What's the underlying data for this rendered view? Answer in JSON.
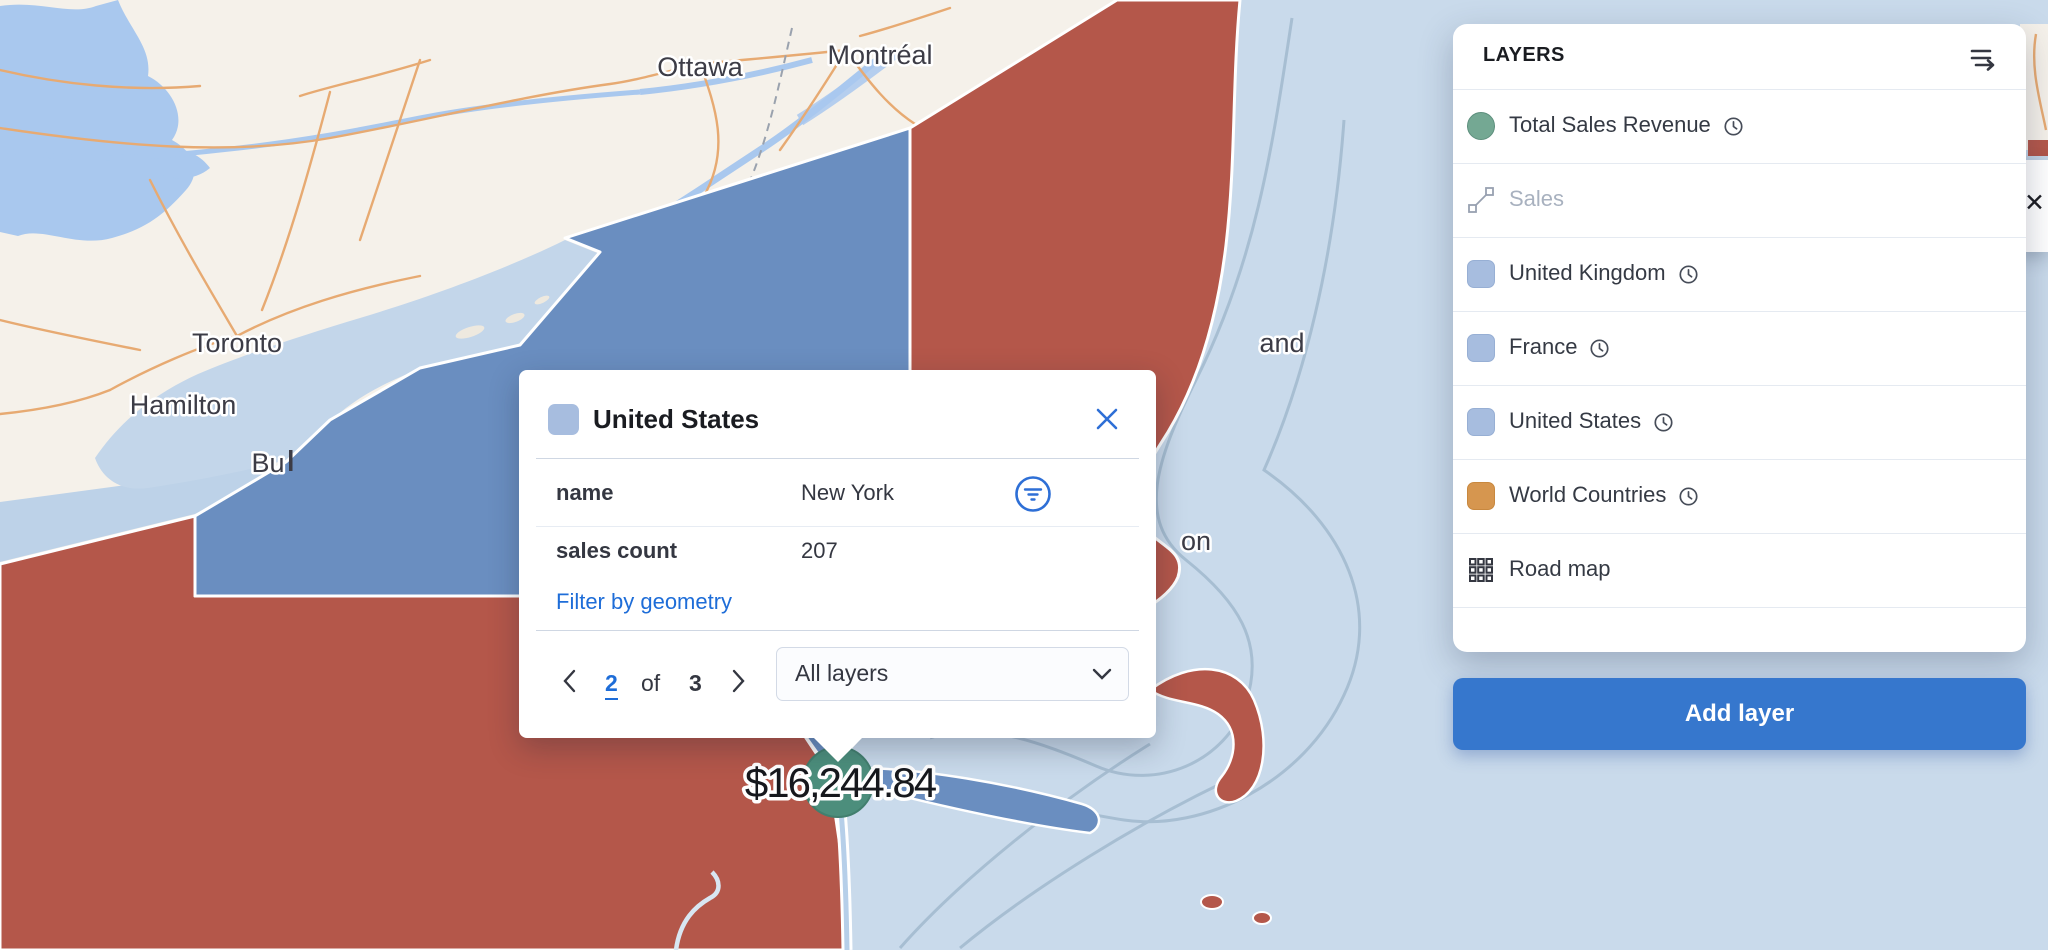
{
  "map": {
    "labels": {
      "ottawa": "Ottawa",
      "montreal": "Montréal",
      "toronto": "Toronto",
      "hamilton": "Hamilton",
      "buffalo_partial": "Bu",
      "portland_partial": "and",
      "boston_partial": "on"
    },
    "marker": {
      "value": "$16,244.84"
    },
    "edge_close_label": "✕"
  },
  "popup": {
    "title": "United States",
    "rows": [
      {
        "label": "name",
        "value": "New York"
      },
      {
        "label": "sales count",
        "value": "207"
      }
    ],
    "filter_link": "Filter by geometry",
    "pagination": {
      "current": "2",
      "of_label": "of",
      "total": "3"
    },
    "layer_select": {
      "value": "All layers"
    }
  },
  "layers_panel": {
    "title": "LAYERS",
    "items": [
      {
        "label": "Total Sales Revenue",
        "icon": "circle-green",
        "has_clock": true
      },
      {
        "label": "Sales",
        "icon": "track-line",
        "muted": true
      },
      {
        "label": "United Kingdom",
        "icon": "square-blue",
        "has_clock": true
      },
      {
        "label": "France",
        "icon": "square-blue",
        "has_clock": true
      },
      {
        "label": "United States",
        "icon": "square-blue",
        "has_clock": true
      },
      {
        "label": "World Countries",
        "icon": "square-orange",
        "has_clock": true
      },
      {
        "label": "Road map",
        "icon": "grid"
      }
    ],
    "add_layer_label": "Add layer"
  },
  "colors": {
    "accent_blue": "#2e6fd6",
    "button_blue": "#3677cd",
    "region_red": "#b4574a",
    "region_blue": "#6a8ec0",
    "water_light": "#c9daeb",
    "lake_blue": "#a9c8ee",
    "marker_green": "#4c8e7c",
    "layer_square_blue": "#a7bddf",
    "layer_square_orange": "#d6964f",
    "layer_circle_green": "#74a893"
  }
}
